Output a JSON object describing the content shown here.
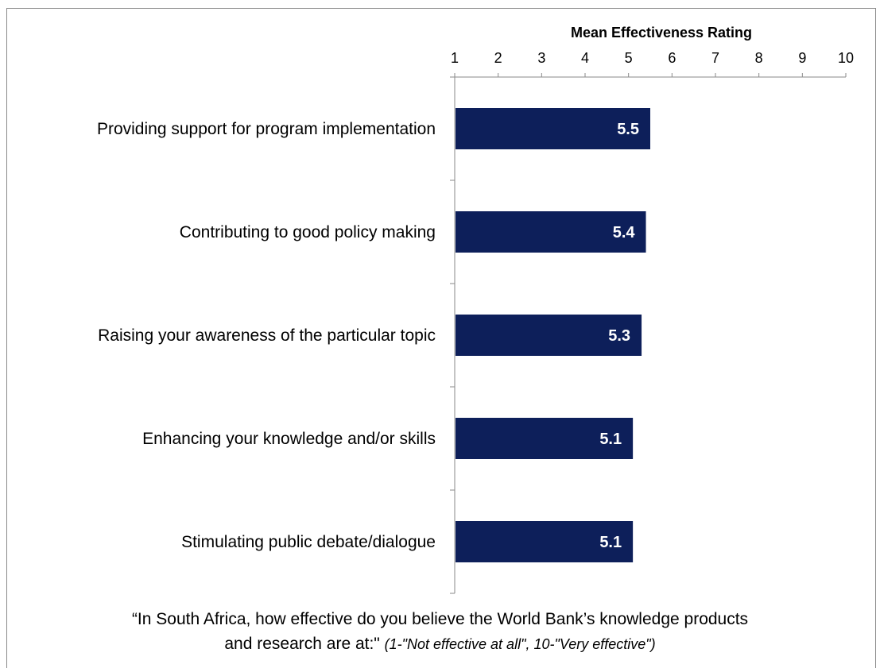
{
  "chart_data": {
    "type": "bar",
    "orientation": "horizontal",
    "title": "",
    "xlabel": "Mean Effectiveness Rating",
    "xlabel_position": "top",
    "xlim": [
      1,
      10
    ],
    "xticks": [
      1,
      2,
      3,
      4,
      5,
      6,
      7,
      8,
      9,
      10
    ],
    "categories": [
      "Providing support for program implementation",
      "Contributing to good policy making",
      "Raising your awareness of the particular topic",
      "Enhancing your knowledge and/or skills",
      "Stimulating public debate/dialogue"
    ],
    "values": [
      5.5,
      5.4,
      5.3,
      5.1,
      5.1
    ],
    "value_labels": [
      "5.5",
      "5.4",
      "5.3",
      "5.1",
      "5.1"
    ],
    "bar_color": "#0d1f5a",
    "grid": false,
    "legend": "none"
  },
  "footnote": {
    "line1": "“In South Africa, how effective do you believe the World Bank’s knowledge products",
    "line2": "and research are at:\"",
    "scale": "(1-\"Not effective at all\", 10-\"Very effective\")"
  }
}
